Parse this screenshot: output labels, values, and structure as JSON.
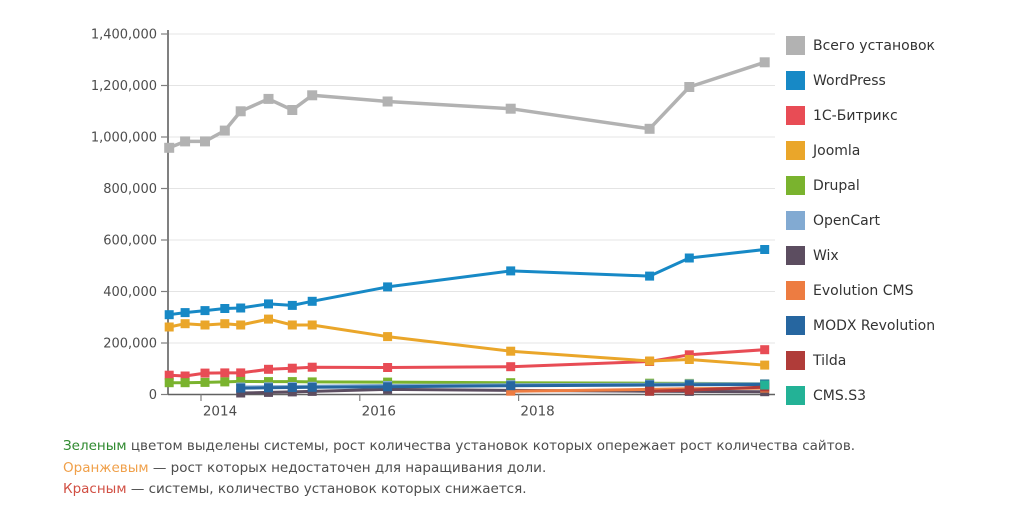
{
  "chart_data": {
    "type": "line",
    "title": "",
    "xlabel": "",
    "ylabel": "",
    "grid": true,
    "legend_position": "right",
    "x_axis": {
      "tick_labels": [
        "2014",
        "2016",
        "2018"
      ],
      "tick_years": [
        2014,
        2016,
        2018
      ]
    },
    "y_axis": {
      "ticks": [
        0,
        200000,
        400000,
        600000,
        800000,
        1000000,
        1200000,
        1400000
      ],
      "tick_labels": [
        "0",
        "200,000",
        "400,000",
        "600,000",
        "800,000",
        "1,000,000",
        "1,200,000",
        "1,400,000"
      ],
      "range": [
        0,
        1400000
      ]
    },
    "x_points_years": [
      2013.6,
      2013.8,
      2014.05,
      2014.3,
      2014.5,
      2014.85,
      2015.15,
      2015.4,
      2016.35,
      2017.9,
      2019.65,
      2020.15,
      2021.1
    ],
    "series": [
      {
        "name": "Всего установок",
        "slug": "total-installs",
        "color": "#b2b2b2",
        "start_index": 0,
        "values": [
          958000,
          983000,
          983000,
          1025000,
          1100000,
          1148000,
          1105000,
          1162000,
          1138000,
          1110000,
          1032000,
          1194000,
          1290000
        ]
      },
      {
        "name": "WordPress",
        "slug": "wordpress",
        "color": "#1789c6",
        "start_index": 0,
        "values": [
          310000,
          318000,
          326000,
          334000,
          336000,
          352000,
          346000,
          362000,
          418000,
          480000,
          460000,
          530000,
          563000
        ]
      },
      {
        "name": "1С-Битрикс",
        "slug": "1c-bitrix",
        "color": "#e84c55",
        "start_index": 0,
        "values": [
          75000,
          72000,
          83000,
          84000,
          84000,
          98000,
          102000,
          106000,
          105000,
          108000,
          128000,
          154000,
          174000
        ]
      },
      {
        "name": "Joomla",
        "slug": "joomla",
        "color": "#eaa62a",
        "start_index": 0,
        "values": [
          262000,
          275000,
          270000,
          275000,
          270000,
          293000,
          270000,
          270000,
          225000,
          168000,
          130000,
          136000,
          114000
        ]
      },
      {
        "name": "Drupal",
        "slug": "drupal",
        "color": "#7ab32e",
        "start_index": 0,
        "values": [
          46000,
          46000,
          47000,
          49000,
          51000,
          50000,
          50000,
          49000,
          48000,
          46000,
          44000,
          43000,
          42000
        ]
      },
      {
        "name": "OpenCart",
        "slug": "opencart",
        "color": "#82aad2",
        "start_index": 4,
        "values": [
          29000,
          30000,
          31000,
          32000,
          35000,
          38000,
          40000,
          41000,
          42000
        ]
      },
      {
        "name": "Wix",
        "slug": "wix",
        "color": "#5c4d60",
        "start_index": 4,
        "values": [
          6000,
          8000,
          10000,
          12000,
          20000,
          16000,
          13000,
          12000,
          11000
        ]
      },
      {
        "name": "Evolution CMS",
        "slug": "evolution-cms",
        "color": "#ed7c41",
        "start_index": 9,
        "values": [
          13000,
          20000,
          22000,
          25000
        ]
      },
      {
        "name": "MODX Revolution",
        "slug": "modx-revolution",
        "color": "#2666a0",
        "start_index": 4,
        "values": [
          25000,
          26000,
          27000,
          28000,
          30000,
          34000,
          37000,
          38000,
          39000
        ]
      },
      {
        "name": "Tilda",
        "slug": "tilda",
        "color": "#b03c39",
        "start_index": 10,
        "values": [
          13000,
          17000,
          29000
        ]
      },
      {
        "name": "CMS.S3",
        "slug": "cms-s3",
        "color": "#23b296",
        "start_index": 12,
        "values": [
          37000
        ]
      }
    ]
  },
  "footnotes": [
    {
      "lead": "Зеленым",
      "lead_color": "#2f8a2f",
      "text": " цветом выделены системы, рост количества установок которых опережает рост количества сайтов."
    },
    {
      "lead": "Оранжевым",
      "lead_color": "#f0a04a",
      "text": " — рост которых недостаточен для наращивания доли."
    },
    {
      "lead": "Красным",
      "lead_color": "#d14f43",
      "text": " — системы, количество установок которых снижается."
    }
  ]
}
